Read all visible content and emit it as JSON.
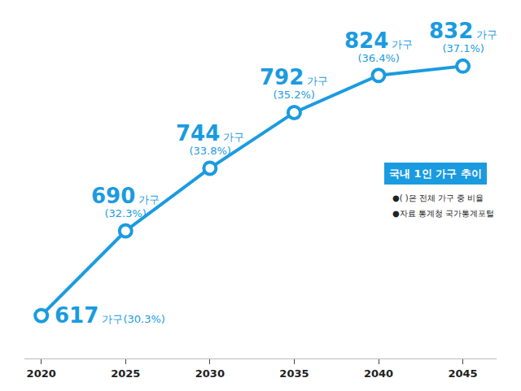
{
  "chart_data": {
    "type": "line",
    "title": "국내 1인 가구 추이",
    "notes": [
      "●( )은 전체 가구 중 비율",
      "●자료 통계청 국가통계포털"
    ],
    "x": [
      2020,
      2025,
      2030,
      2035,
      2040,
      2045
    ],
    "values": [
      617,
      690,
      744,
      792,
      824,
      832
    ],
    "value_labels": [
      "617 가구(30.3%)",
      "690 가구(32.3%)",
      "744 가구(33.8%)",
      "792 가구(35.2%)",
      "824 가구(36.4%)",
      "832 가구(37.1%)"
    ],
    "data_labels": true,
    "color": "#1a9be0",
    "marker": "circle",
    "line_style": "solid",
    "xlim": [
      2019,
      2047
    ],
    "xticks": [
      2020,
      2025,
      2030,
      2035,
      2040,
      2045
    ],
    "ylim": [
      580,
      875
    ],
    "tick_labels": "x",
    "grid": false
  }
}
